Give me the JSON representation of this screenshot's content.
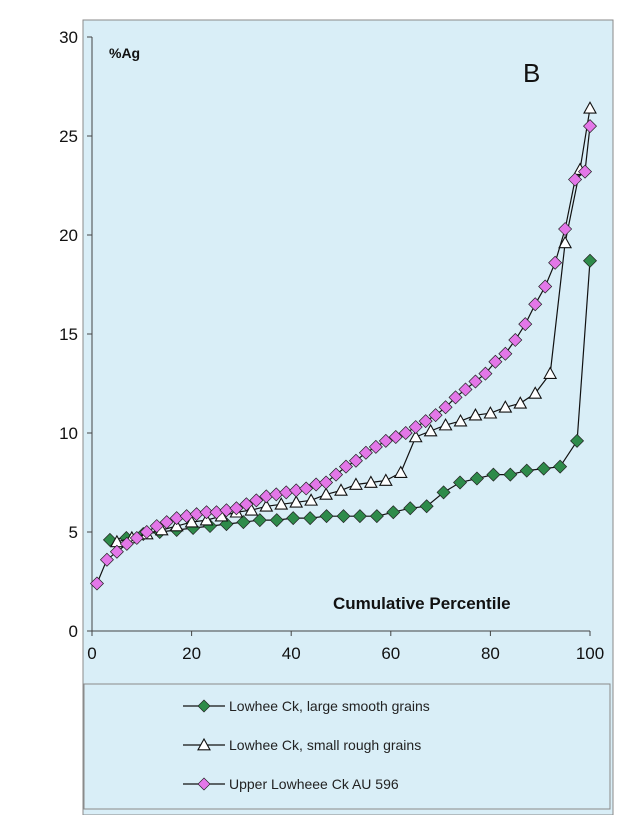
{
  "chart_data": {
    "type": "line",
    "ylabel": "%Ag",
    "xlabel": "Cumulative Percentile",
    "panel_label": "B",
    "xlim": [
      0,
      100
    ],
    "ylim": [
      0,
      30
    ],
    "x_ticks": [
      0,
      20,
      40,
      60,
      80,
      100
    ],
    "y_ticks": [
      0,
      5,
      10,
      15,
      20,
      25,
      30
    ],
    "grid": false,
    "legend_position": "bottom",
    "series": [
      {
        "name": "Lowhee Ck, large smooth grains",
        "marker": "diamond",
        "color": "#2e8b4a",
        "x": [
          3.6,
          6.9,
          10.3,
          13.6,
          17.0,
          20.3,
          23.7,
          27.0,
          30.4,
          33.7,
          37.1,
          40.4,
          43.8,
          47.1,
          50.5,
          53.8,
          57.2,
          60.5,
          63.9,
          67.2,
          70.6,
          73.9,
          77.3,
          80.6,
          84.0,
          87.3,
          90.7,
          94.0,
          97.4,
          100.0
        ],
        "y": [
          4.6,
          4.7,
          4.9,
          5.0,
          5.1,
          5.2,
          5.3,
          5.4,
          5.5,
          5.6,
          5.6,
          5.7,
          5.7,
          5.8,
          5.8,
          5.8,
          5.8,
          6.0,
          6.2,
          6.3,
          7.0,
          7.5,
          7.7,
          7.9,
          7.9,
          8.1,
          8.2,
          8.3,
          9.6,
          18.7
        ]
      },
      {
        "name": "Lowhee Ck, small rough grains",
        "marker": "triangle",
        "color": "#111111",
        "x": [
          5.0,
          8.0,
          11.0,
          14.0,
          17.0,
          20.0,
          23.0,
          26.0,
          29.0,
          32.0,
          35.0,
          38.0,
          41.0,
          44.0,
          47.0,
          50.0,
          53.0,
          56.0,
          59.0,
          62.0,
          65.0,
          68.0,
          71.0,
          74.0,
          77.0,
          80.0,
          83.0,
          86.0,
          89.0,
          92.0,
          95.0,
          98.0,
          100.0
        ],
        "y": [
          4.5,
          4.7,
          4.9,
          5.1,
          5.3,
          5.5,
          5.6,
          5.8,
          6.0,
          6.1,
          6.3,
          6.4,
          6.5,
          6.6,
          6.9,
          7.1,
          7.4,
          7.5,
          7.6,
          8.0,
          9.8,
          10.1,
          10.4,
          10.6,
          10.9,
          11.0,
          11.3,
          11.5,
          12.0,
          13.0,
          19.6,
          23.3,
          26.4
        ]
      },
      {
        "name": "Upper Lowheee Ck AU 596",
        "marker": "diamond",
        "color": "#e377e8",
        "x": [
          1.0,
          3.0,
          5.0,
          7.0,
          9.0,
          11.0,
          13.0,
          15.0,
          17.0,
          19.0,
          21.0,
          23.0,
          25.0,
          27.0,
          29.0,
          31.0,
          33.0,
          35.0,
          37.0,
          39.0,
          41.0,
          43.0,
          45.0,
          47.0,
          49.0,
          51.0,
          53.0,
          55.0,
          57.0,
          59.0,
          61.0,
          63.0,
          65.0,
          67.0,
          69.0,
          71.0,
          73.0,
          75.0,
          77.0,
          79.0,
          81.0,
          83.0,
          85.0,
          87.0,
          89.0,
          91.0,
          93.0,
          95.0,
          97.0,
          99.0,
          100.0
        ],
        "y": [
          2.4,
          3.6,
          4.0,
          4.4,
          4.7,
          5.0,
          5.3,
          5.5,
          5.7,
          5.8,
          5.9,
          6.0,
          6.0,
          6.1,
          6.2,
          6.4,
          6.6,
          6.8,
          6.9,
          7.0,
          7.1,
          7.2,
          7.4,
          7.5,
          7.9,
          8.3,
          8.6,
          9.0,
          9.3,
          9.6,
          9.8,
          10.0,
          10.3,
          10.6,
          10.9,
          11.3,
          11.8,
          12.2,
          12.6,
          13.0,
          13.6,
          14.0,
          14.7,
          15.5,
          16.5,
          17.4,
          18.6,
          20.3,
          22.8,
          23.2,
          25.5
        ]
      }
    ]
  }
}
